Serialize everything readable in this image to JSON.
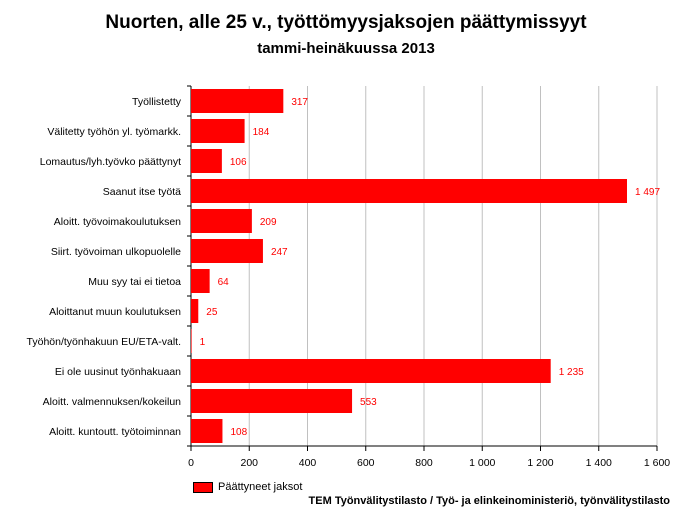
{
  "title": "Nuorten, alle 25 v., työttömyysjaksojen päättymissyyt",
  "subtitle": "tammi-heinäkuussa 2013",
  "source": "TEM Työnvälitystilasto / Työ- ja elinkeinoministeriö, työnvälitystilasto",
  "chart_data": {
    "type": "bar",
    "orientation": "horizontal",
    "title": "Nuorten, alle 25 v., työttömyysjaksojen päättymissyyt",
    "subtitle": "tammi-heinäkuussa 2013",
    "categories": [
      "Työllistetty",
      "Välitetty työhön yl. työmarkk.",
      "Lomautus/lyh.työvko päättynyt",
      "Saanut itse työtä",
      "Aloitt. työvoimakoulutuksen",
      "Siirt. työvoiman ulkopuolelle",
      "Muu syy tai ei tietoa",
      "Aloittanut muun koulutuksen",
      "Työhön/työnhakuun EU/ETA-valt.",
      "Ei ole uusinut työnhakuaan",
      "Aloitt. valmennuksen/kokeilun",
      "Aloitt. kuntoutt. työtoiminnan"
    ],
    "series": [
      {
        "name": "Päättyneet jaksot",
        "color": "#ff0000",
        "values": [
          317,
          184,
          106,
          1497,
          209,
          247,
          64,
          25,
          1,
          1235,
          553,
          108
        ],
        "value_labels": [
          "317",
          "184",
          "106",
          "1 497",
          "209",
          "247",
          "64",
          "25",
          "1",
          "1 235",
          "553",
          "108"
        ]
      }
    ],
    "xlim": [
      0,
      1600
    ],
    "xticks": [
      0,
      200,
      400,
      600,
      800,
      1000,
      1200,
      1400,
      1600
    ],
    "xtick_labels": [
      "0",
      "200",
      "400",
      "600",
      "800",
      "1 000",
      "1 200",
      "1 400",
      "1 600"
    ],
    "grid": "vertical",
    "legend": "bottom-left"
  }
}
